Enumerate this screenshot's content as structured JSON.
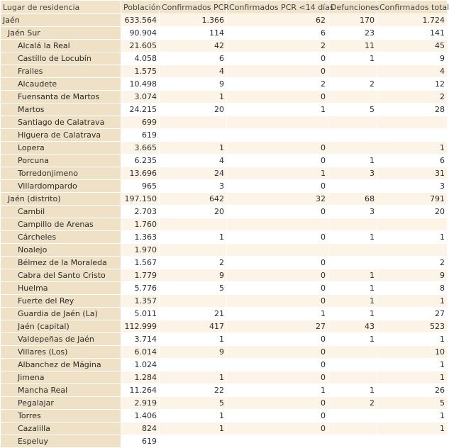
{
  "table": {
    "header": [
      "Lugar de residencia",
      "Población",
      "Confirmados PCR",
      "Confirmados PCR <14 días",
      "Defunciones",
      "Confirmados total"
    ],
    "province": {
      "cells": [
        "Jaén",
        "633.564",
        "1.366",
        "62",
        "170",
        "1.724"
      ],
      "districts": [
        {
          "cells": [
            "Jaén Sur",
            "90.904",
            "114",
            "6",
            "23",
            "141"
          ],
          "municipalities": [
            [
              "Alcalá la Real",
              "21.605",
              "42",
              "2",
              "11",
              "45"
            ],
            [
              "Castillo de Locubín",
              "4.058",
              "6",
              "0",
              "1",
              "9"
            ],
            [
              "Frailes",
              "1.575",
              "4",
              "0",
              null,
              "4"
            ],
            [
              "Alcaudete",
              "10.498",
              "9",
              "2",
              "2",
              "12"
            ],
            [
              "Fuensanta de Martos",
              "3.074",
              "1",
              "0",
              null,
              "2"
            ],
            [
              "Martos",
              "24.215",
              "20",
              "1",
              "5",
              "28"
            ],
            [
              "Santiago de Calatrava",
              "699",
              null,
              null,
              null,
              null
            ],
            [
              "Higuera de Calatrava",
              "619",
              null,
              null,
              null,
              null
            ],
            [
              "Lopera",
              "3.665",
              "1",
              "0",
              null,
              "1"
            ],
            [
              "Porcuna",
              "6.235",
              "4",
              "0",
              "1",
              "6"
            ],
            [
              "Torredonjimeno",
              "13.696",
              "24",
              "1",
              "3",
              "31"
            ],
            [
              "Villardompardo",
              "965",
              "3",
              "0",
              null,
              "3"
            ]
          ]
        },
        {
          "cells": [
            "Jaén (distrito)",
            "197.150",
            "642",
            "32",
            "68",
            "791"
          ],
          "municipalities": [
            [
              "Cambil",
              "2.703",
              "20",
              "0",
              "3",
              "20"
            ],
            [
              "Campillo de Arenas",
              "1.760",
              null,
              null,
              null,
              null
            ],
            [
              "Cárcheles",
              "1.363",
              "1",
              "0",
              "1",
              "1"
            ],
            [
              "Noalejo",
              "1.970",
              null,
              null,
              null,
              null
            ],
            [
              "Bélmez de la Moraleda",
              "1.567",
              "2",
              "0",
              null,
              "2"
            ],
            [
              "Cabra del Santo Cristo",
              "1.779",
              "9",
              "0",
              "1",
              "9"
            ],
            [
              "Huelma",
              "5.776",
              "5",
              "0",
              "1",
              "8"
            ],
            [
              "Fuerte del Rey",
              "1.357",
              null,
              "0",
              "1",
              "1"
            ],
            [
              "Guardia de Jaén (La)",
              "5.011",
              "21",
              "1",
              "1",
              "27"
            ],
            [
              "Jaén (capital)",
              "112.999",
              "417",
              "27",
              "43",
              "523"
            ],
            [
              "Valdepeñas de Jaén",
              "3.714",
              "1",
              "0",
              "1",
              "1"
            ],
            [
              "Villares (Los)",
              "6.014",
              "9",
              "0",
              null,
              "10"
            ],
            [
              "Albanchez de Mágina",
              "1.024",
              null,
              "0",
              null,
              "1"
            ],
            [
              "Jimena",
              "1.284",
              "1",
              "0",
              null,
              "1"
            ],
            [
              "Mancha Real",
              "11.264",
              "22",
              "1",
              "1",
              "26"
            ],
            [
              "Pegalajar",
              "2.919",
              "5",
              "0",
              "2",
              "5"
            ],
            [
              "Torres",
              "1.406",
              "1",
              "0",
              null,
              "1"
            ],
            [
              "Cazalilla",
              "824",
              "1",
              "0",
              null,
              "1"
            ],
            [
              "Espeluy",
              "619",
              null,
              null,
              null,
              null
            ]
          ]
        }
      ]
    }
  }
}
